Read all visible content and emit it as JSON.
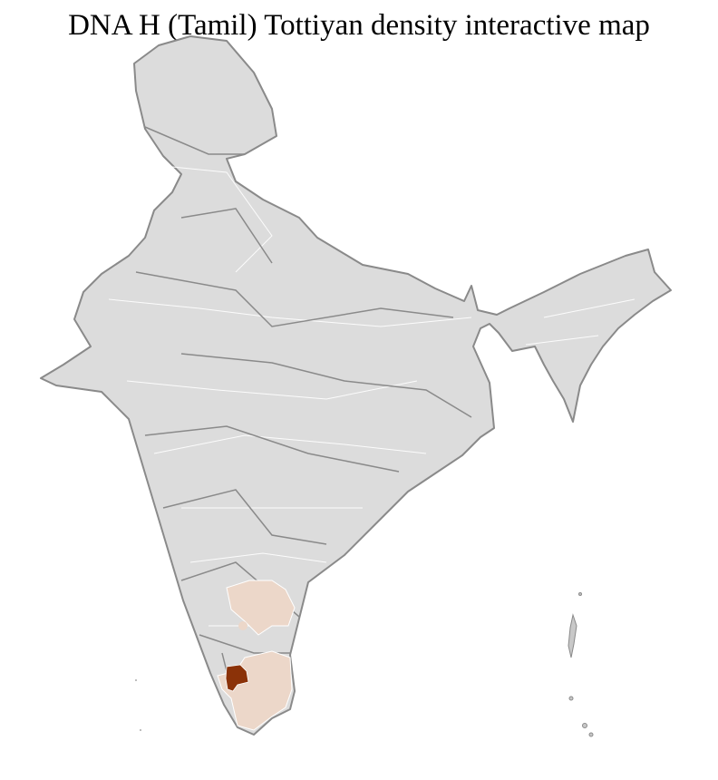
{
  "title": "DNA H (Tamil) Tottiyan density interactive map",
  "colors": {
    "no_data": "#dcdcdc",
    "border": "#8a8a8a",
    "district_border": "#ffffff",
    "low_density": "#ecd7c9",
    "high_density": "#8b3208"
  },
  "regions": [
    {
      "level": "low",
      "area": "Karnataka south-east districts"
    },
    {
      "level": "low",
      "area": "Tamil Nadu districts"
    },
    {
      "level": "high",
      "area": "Tamil Nadu western district"
    }
  ]
}
